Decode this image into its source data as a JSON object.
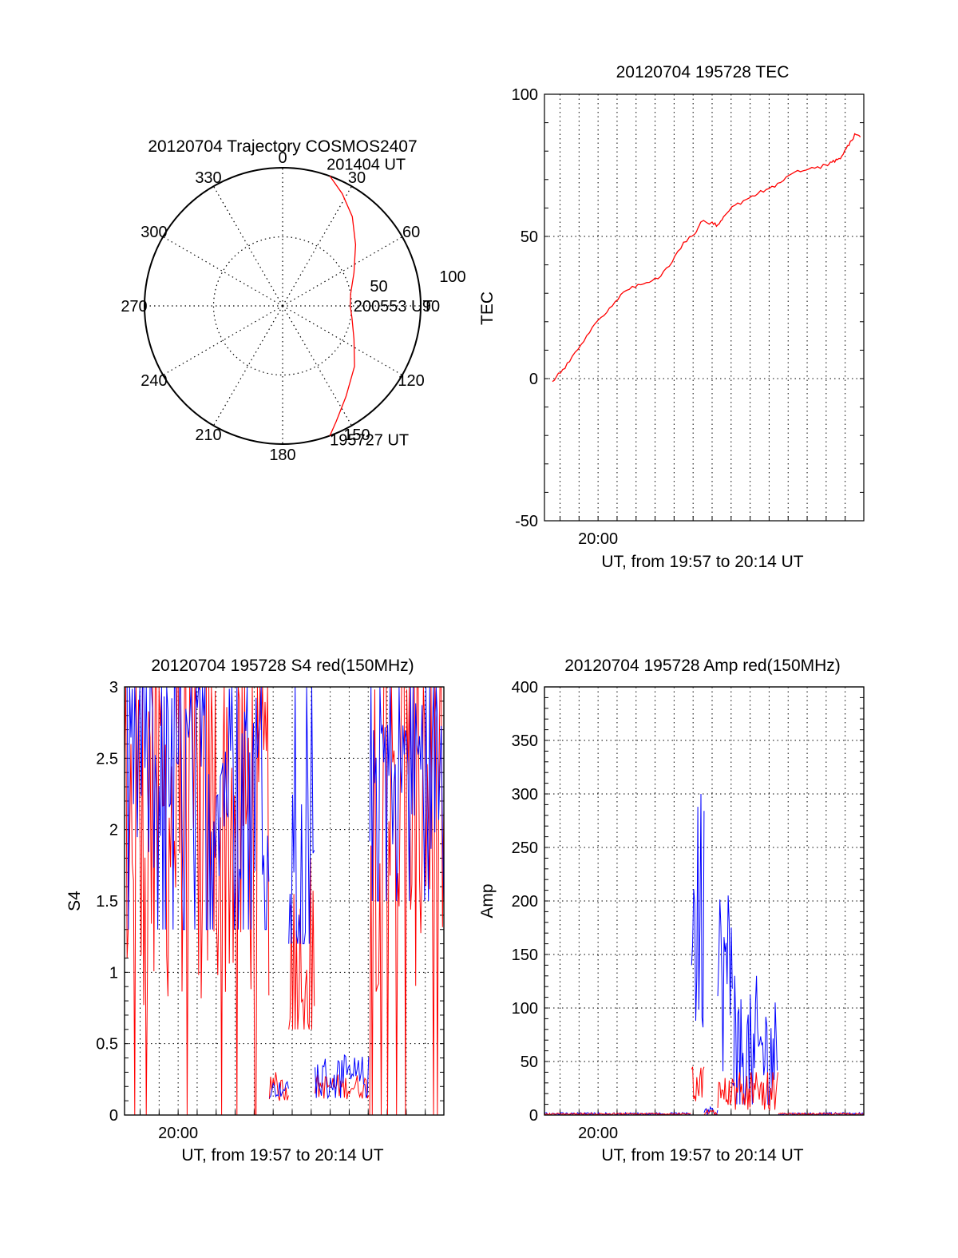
{
  "colors": {
    "red": "#ff0000",
    "blue": "#0000ff",
    "axis": "#000000",
    "background": "#ffffff"
  },
  "chart_data": [
    {
      "id": "polar",
      "type": "scatter",
      "title": "20120704 Trajectory COSMOS2407",
      "azimuth_labels": [
        "0",
        "30",
        "60",
        "90",
        "120",
        "150",
        "180",
        "210",
        "240",
        "270",
        "300",
        "330"
      ],
      "zenith_ring_labels": [
        "50",
        "100"
      ],
      "rlim": [
        0,
        100
      ],
      "track": {
        "azimuth_deg": [
          160,
          155,
          145,
          130,
          115,
          100,
          90,
          80,
          65,
          50,
          38,
          28,
          20
        ],
        "zenith_deg": [
          100,
          92,
          80,
          68,
          57,
          51,
          49,
          50,
          57,
          69,
          82,
          92,
          100
        ]
      },
      "annotations": [
        {
          "text": "201404 UT",
          "azimuth_deg": 20,
          "zenith_deg": 100
        },
        {
          "text": "200553 UT",
          "azimuth_deg": 90,
          "zenith_deg": 49
        },
        {
          "text": "195727 UT",
          "azimuth_deg": 160,
          "zenith_deg": 100
        }
      ],
      "grid": true
    },
    {
      "id": "tec",
      "type": "line",
      "title": "20120704 195728 TEC",
      "xlabel": "UT, from 19:57 to 20:14 UT",
      "ylabel": "TEC",
      "xlim": [
        19.953,
        20.233
      ],
      "ylim": [
        -50,
        100
      ],
      "yticks": [
        "100",
        "50",
        "0",
        "-50"
      ],
      "xticks": [
        {
          "label": "20:00",
          "value": 20.0
        }
      ],
      "grid": true,
      "series": [
        {
          "color": "#ff0000",
          "x": [
            19.96,
            19.967,
            19.975,
            19.985,
            19.995,
            20.005,
            20.015,
            20.025,
            20.035,
            20.045,
            20.055,
            20.065,
            20.075,
            20.085,
            20.09,
            20.1,
            20.105,
            20.11,
            20.12,
            20.13,
            20.14,
            20.15,
            20.16,
            20.17,
            20.18,
            20.19,
            20.2,
            20.205,
            20.21,
            20.215,
            20.22,
            20.225,
            20.23
          ],
          "y": [
            -1,
            2,
            6,
            12,
            18,
            22,
            27,
            31,
            33,
            34,
            36,
            41,
            48,
            51,
            55,
            55,
            54,
            57,
            61,
            63,
            65,
            67,
            69,
            72,
            73,
            74,
            75,
            76,
            77,
            79,
            82,
            86,
            85
          ]
        }
      ]
    },
    {
      "id": "s4",
      "type": "line",
      "title": "20120704 195728 S4 red(150MHz)",
      "xlabel": "UT, from 19:57 to 20:14 UT",
      "ylabel": "S4",
      "xlim": [
        19.953,
        20.233
      ],
      "ylim": [
        0,
        3
      ],
      "yticks": [
        "3",
        "2.5",
        "2",
        "1.5",
        "1",
        "0.5",
        "0"
      ],
      "xticks": [
        {
          "label": "20:00",
          "value": 20.0
        }
      ],
      "grid": true,
      "series": [
        {
          "color": "#ff0000",
          "segments": [
            {
              "x0": 19.953,
              "x1": 20.08,
              "min": 0.0,
              "max": 3.0,
              "base": 2.1
            },
            {
              "x0": 20.08,
              "x1": 20.097,
              "min": 0.1,
              "max": 0.3,
              "base": 0.18
            },
            {
              "x0": 20.097,
              "x1": 20.12,
              "min": 0.6,
              "max": 1.8,
              "base": 1.1
            },
            {
              "x0": 20.12,
              "x1": 20.168,
              "min": 0.1,
              "max": 0.3,
              "base": 0.2
            },
            {
              "x0": 20.168,
              "x1": 20.233,
              "min": 0.0,
              "max": 3.0,
              "base": 2.2
            }
          ]
        },
        {
          "color": "#0000ff",
          "segments": [
            {
              "x0": 19.953,
              "x1": 20.08,
              "min": 1.3,
              "max": 3.0,
              "base": 2.4
            },
            {
              "x0": 20.08,
              "x1": 20.097,
              "min": 0.12,
              "max": 0.25,
              "base": 0.18
            },
            {
              "x0": 20.097,
              "x1": 20.12,
              "min": 1.2,
              "max": 3.0,
              "base": 1.6
            },
            {
              "x0": 20.12,
              "x1": 20.168,
              "min": 0.12,
              "max": 0.5,
              "base": 0.25
            },
            {
              "x0": 20.168,
              "x1": 20.233,
              "min": 1.5,
              "max": 3.0,
              "base": 2.5
            }
          ]
        }
      ]
    },
    {
      "id": "amp",
      "type": "line",
      "title": "20120704 195728 Amp red(150MHz)",
      "xlabel": "UT, from 19:57 to 20:14 UT",
      "ylabel": "Amp",
      "xlim": [
        19.953,
        20.233
      ],
      "ylim": [
        0,
        400
      ],
      "yticks": [
        "400",
        "350",
        "300",
        "250",
        "200",
        "150",
        "100",
        "50",
        "0"
      ],
      "xticks": [
        {
          "label": "20:00",
          "value": 20.0
        }
      ],
      "grid": true,
      "series": [
        {
          "color": "#ff0000",
          "segments": [
            {
              "x0": 19.953,
              "x1": 20.082,
              "min": 0,
              "max": 2,
              "base": 1
            },
            {
              "x0": 20.082,
              "x1": 20.093,
              "min": 5,
              "max": 45,
              "base": 30
            },
            {
              "x0": 20.093,
              "x1": 20.105,
              "min": 0,
              "max": 8,
              "base": 2
            },
            {
              "x0": 20.105,
              "x1": 20.158,
              "min": 5,
              "max": 40,
              "base": 22
            },
            {
              "x0": 20.158,
              "x1": 20.233,
              "min": 0,
              "max": 2,
              "base": 1
            }
          ]
        },
        {
          "color": "#0000ff",
          "segments": [
            {
              "x0": 19.953,
              "x1": 20.082,
              "min": 0,
              "max": 3,
              "base": 1
            },
            {
              "x0": 20.082,
              "x1": 20.093,
              "min": 40,
              "max": 300,
              "base": 180
            },
            {
              "x0": 20.093,
              "x1": 20.105,
              "min": 0,
              "max": 10,
              "base": 3
            },
            {
              "x0": 20.105,
              "x1": 20.118,
              "min": 20,
              "max": 225,
              "base": 130
            },
            {
              "x0": 20.118,
              "x1": 20.158,
              "min": 10,
              "max": 130,
              "base": 60
            },
            {
              "x0": 20.158,
              "x1": 20.233,
              "min": 0,
              "max": 3,
              "base": 1
            }
          ]
        }
      ]
    }
  ]
}
